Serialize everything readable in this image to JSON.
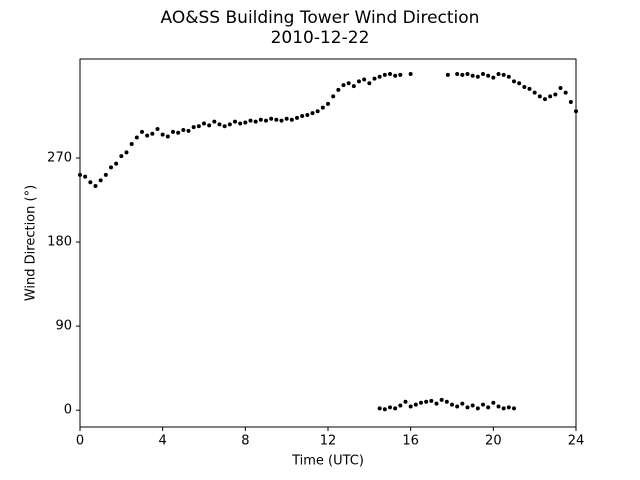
{
  "chart_data": {
    "type": "scatter",
    "title": "AO&SS Building Tower Wind Direction",
    "subtitle": "2010-12-22",
    "x_label": "Time (UTC)",
    "y_label": "Wind Direction (°)",
    "color": "#000000",
    "x": [
      0,
      0.25,
      0.5,
      0.75,
      1,
      1.25,
      1.5,
      1.75,
      2,
      2.25,
      2.5,
      2.75,
      3,
      3.25,
      3.5,
      3.75,
      4,
      4.25,
      4.5,
      4.75,
      5,
      5.25,
      5.5,
      5.75,
      6,
      6.25,
      6.5,
      6.75,
      7,
      7.25,
      7.5,
      7.75,
      8,
      8.25,
      8.5,
      8.75,
      9,
      9.25,
      9.5,
      9.75,
      10,
      10.25,
      10.5,
      10.75,
      11,
      11.25,
      11.5,
      11.75,
      12,
      12.25,
      12.5,
      12.75,
      13,
      13.25,
      13.5,
      13.75,
      14,
      14.25,
      14.5,
      14.75,
      15,
      15.25,
      15.5,
      16,
      17.8,
      18.25,
      18.5,
      18.75,
      19,
      19.25,
      19.5,
      19.75,
      20,
      20.25,
      20.5,
      20.75,
      21,
      21.25,
      21.5,
      21.75,
      22,
      22.25,
      22.5,
      22.75,
      23,
      23.25,
      23.5,
      23.75,
      24,
      14.5,
      14.75,
      15,
      15.25,
      15.5,
      15.75,
      16,
      16.25,
      16.5,
      16.75,
      17,
      17.25,
      17.5,
      17.75,
      18,
      18.25,
      18.5,
      18.75,
      19,
      19.25,
      19.5,
      19.75,
      20,
      20.25,
      20.5,
      20.75,
      21
    ],
    "values": [
      252,
      250,
      244,
      240,
      246,
      252,
      260,
      264,
      272,
      276,
      285,
      292,
      298,
      294,
      296,
      301,
      295,
      293,
      298,
      297,
      300,
      299,
      303,
      304,
      307,
      305,
      309,
      306,
      304,
      306,
      309,
      307,
      308,
      310,
      309,
      311,
      310,
      312,
      311,
      310,
      312,
      311,
      313,
      315,
      316,
      318,
      320,
      324,
      328,
      336,
      343,
      348,
      350,
      347,
      352,
      354,
      350,
      355,
      357,
      359,
      360,
      358,
      359,
      360,
      359,
      360,
      359,
      360,
      358,
      357,
      360,
      358,
      356,
      360,
      359,
      357,
      352,
      350,
      346,
      344,
      340,
      336,
      333,
      336,
      338,
      345,
      340,
      330,
      320,
      2,
      1,
      3,
      2,
      5,
      9,
      4,
      6,
      8,
      9,
      10,
      7,
      11,
      9,
      6,
      4,
      7,
      3,
      5,
      2,
      6,
      3,
      8,
      4,
      2,
      3,
      2
    ],
    "xlim": [
      0,
      24
    ],
    "xticks": [
      0,
      4,
      8,
      12,
      16,
      20,
      24
    ],
    "ylim": [
      -18,
      376
    ],
    "yticks": [
      0,
      90,
      180,
      270
    ]
  }
}
